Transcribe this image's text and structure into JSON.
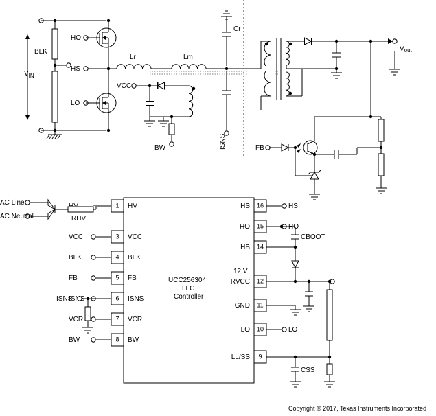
{
  "chip": {
    "part": "UCC256304",
    "line2": "LLC",
    "line3": "Controller",
    "left_pins": [
      {
        "num": "1",
        "name": "HV",
        "net": "HV"
      },
      {
        "num": "3",
        "name": "VCC",
        "net": "VCC"
      },
      {
        "num": "4",
        "name": "BLK",
        "net": "BLK"
      },
      {
        "num": "5",
        "name": "FB",
        "net": "FB"
      },
      {
        "num": "6",
        "name": "ISNS",
        "net": "ISNS"
      },
      {
        "num": "7",
        "name": "VCR",
        "net": "VCR"
      },
      {
        "num": "8",
        "name": "BW",
        "net": "BW"
      }
    ],
    "right_pins": [
      {
        "num": "16",
        "name": "HS",
        "net": "HS"
      },
      {
        "num": "15",
        "name": "HO",
        "net": "HO"
      },
      {
        "num": "14",
        "name": "HB",
        "net": ""
      },
      {
        "num": "12",
        "name": "RVCC",
        "net": ""
      },
      {
        "num": "11",
        "name": "GND",
        "net": ""
      },
      {
        "num": "10",
        "name": "LO",
        "net": "LO"
      },
      {
        "num": "9",
        "name": "LL/SS",
        "net": ""
      }
    ]
  },
  "labels": {
    "vin": "V",
    "vin_sub": "IN",
    "vout": "V",
    "vout_sub": "out",
    "ac_line": "AC Line",
    "ac_neutral": "AC Neutral",
    "ho": "HO",
    "hs": "HS",
    "lo": "LO",
    "blk": "BLK",
    "vcc": "VCC",
    "bw": "BW",
    "fb": "FB",
    "isns": "ISNS",
    "lr": "Lr",
    "lm": "Lm",
    "cr": "Cr",
    "cboot": "CBOOT",
    "css": "CSS",
    "rhv": "RHV",
    "v12": "12 V"
  },
  "copyright": "Copyright © 2017, Texas Instruments Incorporated",
  "style": {
    "stroke": "#000000",
    "stroke_width": 1,
    "dashed": "2,3",
    "bg": "#ffffff"
  }
}
